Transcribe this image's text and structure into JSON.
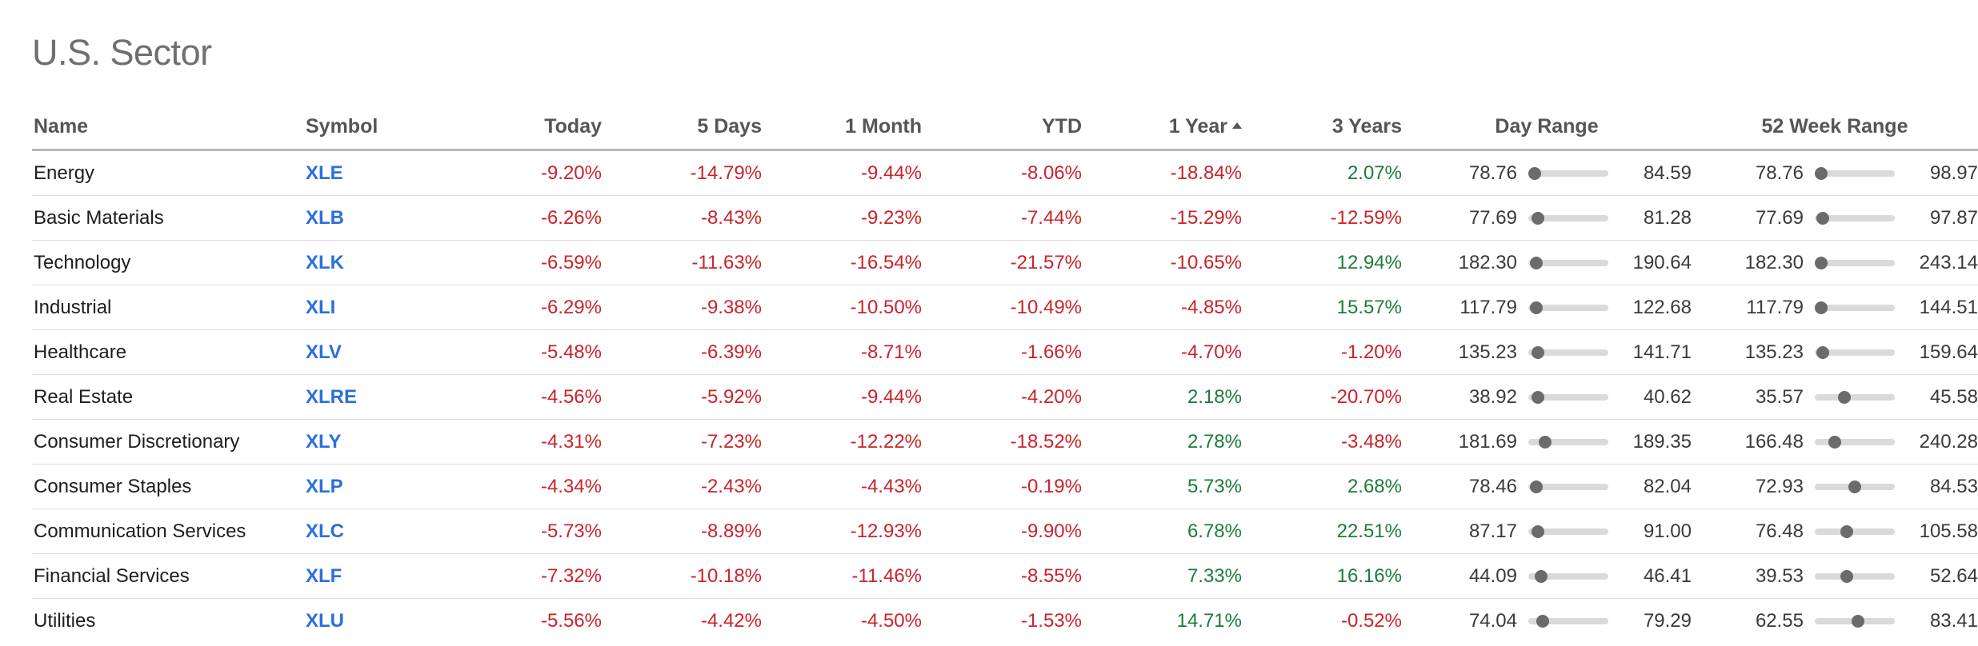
{
  "title": "U.S. Sector",
  "colors": {
    "negative": "#c9232c",
    "positive": "#1c7c3a",
    "symbol": "#2a6fdb"
  },
  "columns": {
    "name": "Name",
    "symbol": "Symbol",
    "today": "Today",
    "five_days": "5 Days",
    "one_month": "1 Month",
    "ytd": "YTD",
    "one_year": "1 Year",
    "three_years": "3 Years",
    "day_range": "Day Range",
    "week52_range": "52 Week Range"
  },
  "sort": {
    "column": "one_year",
    "direction": "ascending",
    "icon": "sort-up-icon"
  },
  "rows": [
    {
      "name": "Energy",
      "symbol": "XLE",
      "today": "-9.20%",
      "five_days": "-14.79%",
      "one_month": "-9.44%",
      "ytd": "-8.06%",
      "one_year": "-18.84%",
      "three_years": "2.07%",
      "day_low": "78.76",
      "day_high": "84.59",
      "day_pos": 0.0,
      "wk_low": "78.76",
      "wk_high": "98.97",
      "wk_pos": 0.0
    },
    {
      "name": "Basic Materials",
      "symbol": "XLB",
      "today": "-6.26%",
      "five_days": "-8.43%",
      "one_month": "-9.23%",
      "ytd": "-7.44%",
      "one_year": "-15.29%",
      "three_years": "-12.59%",
      "day_low": "77.69",
      "day_high": "81.28",
      "day_pos": 0.05,
      "wk_low": "77.69",
      "wk_high": "97.87",
      "wk_pos": 0.02
    },
    {
      "name": "Technology",
      "symbol": "XLK",
      "today": "-6.59%",
      "five_days": "-11.63%",
      "one_month": "-16.54%",
      "ytd": "-21.57%",
      "one_year": "-10.65%",
      "three_years": "12.94%",
      "day_low": "182.30",
      "day_high": "190.64",
      "day_pos": 0.02,
      "wk_low": "182.30",
      "wk_high": "243.14",
      "wk_pos": 0.0
    },
    {
      "name": "Industrial",
      "symbol": "XLI",
      "today": "-6.29%",
      "five_days": "-9.38%",
      "one_month": "-10.50%",
      "ytd": "-10.49%",
      "one_year": "-4.85%",
      "three_years": "15.57%",
      "day_low": "117.79",
      "day_high": "122.68",
      "day_pos": 0.02,
      "wk_low": "117.79",
      "wk_high": "144.51",
      "wk_pos": 0.0
    },
    {
      "name": "Healthcare",
      "symbol": "XLV",
      "today": "-5.48%",
      "five_days": "-6.39%",
      "one_month": "-8.71%",
      "ytd": "-1.66%",
      "one_year": "-4.70%",
      "three_years": "-1.20%",
      "day_low": "135.23",
      "day_high": "141.71",
      "day_pos": 0.05,
      "wk_low": "135.23",
      "wk_high": "159.64",
      "wk_pos": 0.02
    },
    {
      "name": "Real Estate",
      "symbol": "XLRE",
      "today": "-4.56%",
      "five_days": "-5.92%",
      "one_month": "-9.44%",
      "ytd": "-4.20%",
      "one_year": "2.18%",
      "three_years": "-20.70%",
      "day_low": "38.92",
      "day_high": "40.62",
      "day_pos": 0.05,
      "wk_low": "35.57",
      "wk_high": "45.58",
      "wk_pos": 0.34
    },
    {
      "name": "Consumer Discretionary",
      "symbol": "XLY",
      "today": "-4.31%",
      "five_days": "-7.23%",
      "one_month": "-12.22%",
      "ytd": "-18.52%",
      "one_year": "2.78%",
      "three_years": "-3.48%",
      "day_low": "181.69",
      "day_high": "189.35",
      "day_pos": 0.15,
      "wk_low": "166.48",
      "wk_high": "240.28",
      "wk_pos": 0.2
    },
    {
      "name": "Consumer Staples",
      "symbol": "XLP",
      "today": "-4.34%",
      "five_days": "-2.43%",
      "one_month": "-4.43%",
      "ytd": "-0.19%",
      "one_year": "5.73%",
      "three_years": "2.68%",
      "day_low": "78.46",
      "day_high": "82.04",
      "day_pos": 0.02,
      "wk_low": "72.93",
      "wk_high": "84.53",
      "wk_pos": 0.5
    },
    {
      "name": "Communication Services",
      "symbol": "XLC",
      "today": "-5.73%",
      "five_days": "-8.89%",
      "one_month": "-12.93%",
      "ytd": "-9.90%",
      "one_year": "6.78%",
      "three_years": "22.51%",
      "day_low": "87.17",
      "day_high": "91.00",
      "day_pos": 0.05,
      "wk_low": "76.48",
      "wk_high": "105.58",
      "wk_pos": 0.38
    },
    {
      "name": "Financial Services",
      "symbol": "XLF",
      "today": "-7.32%",
      "five_days": "-10.18%",
      "one_month": "-11.46%",
      "ytd": "-8.55%",
      "one_year": "7.33%",
      "three_years": "16.16%",
      "day_low": "44.09",
      "day_high": "46.41",
      "day_pos": 0.1,
      "wk_low": "39.53",
      "wk_high": "52.64",
      "wk_pos": 0.38
    },
    {
      "name": "Utilities",
      "symbol": "XLU",
      "today": "-5.56%",
      "five_days": "-4.42%",
      "one_month": "-4.50%",
      "ytd": "-1.53%",
      "one_year": "14.71%",
      "three_years": "-0.52%",
      "day_low": "74.04",
      "day_high": "79.29",
      "day_pos": 0.12,
      "wk_low": "62.55",
      "wk_high": "83.41",
      "wk_pos": 0.55
    }
  ]
}
